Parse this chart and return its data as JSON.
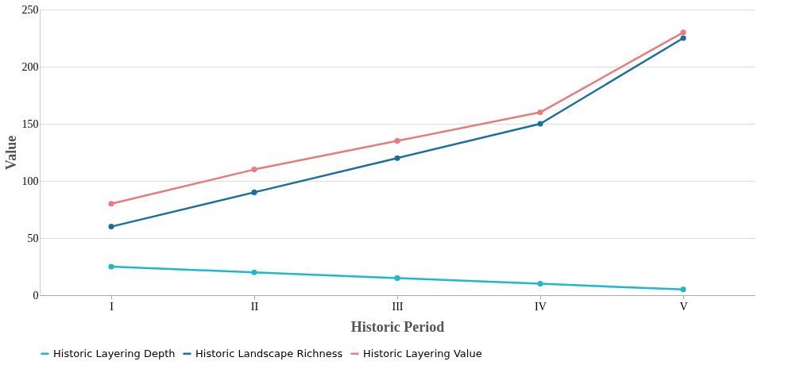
{
  "chart_data": {
    "type": "line",
    "xlabel": "Historic Period",
    "ylabel": "Value",
    "categories": [
      "I",
      "II",
      "III",
      "IV",
      "V"
    ],
    "series": [
      {
        "name": "Historic Layering Depth",
        "color": "#1fb8c8",
        "values": [
          25,
          20,
          15,
          10,
          5
        ]
      },
      {
        "name": "Historic Landscape Richness",
        "color": "#1b6f9e",
        "values": [
          60,
          90,
          120,
          150,
          225
        ]
      },
      {
        "name": "Historic Layering Value",
        "color": "#e87b7b",
        "values": [
          80,
          110,
          135,
          160,
          230
        ]
      }
    ],
    "ylim": [
      0,
      250
    ],
    "yticks": [
      0,
      50,
      100,
      150,
      200,
      250
    ],
    "grid": "y",
    "legend": "bottom",
    "marker": "circle",
    "line_style": "solid"
  }
}
